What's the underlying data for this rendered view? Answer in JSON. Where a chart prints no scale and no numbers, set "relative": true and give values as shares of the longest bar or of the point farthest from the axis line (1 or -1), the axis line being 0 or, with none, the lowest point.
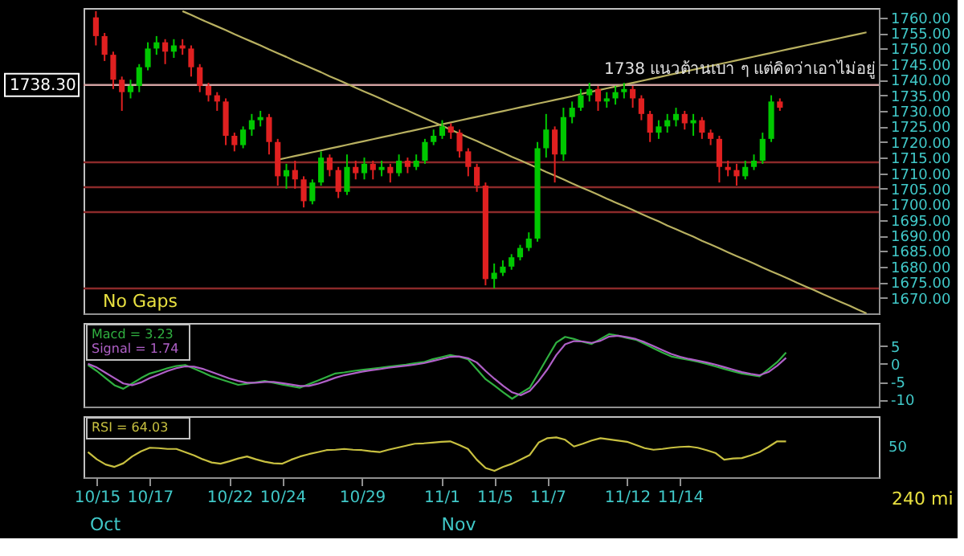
{
  "chart_data": [
    {
      "type": "candlestick",
      "categories": [
        null,
        null,
        null,
        null,
        null,
        null,
        null,
        null,
        null,
        null,
        null,
        null,
        null,
        null,
        null,
        null,
        null,
        null,
        null,
        null,
        null,
        null,
        null,
        null,
        null,
        null,
        null,
        null,
        null,
        null,
        null,
        null,
        null,
        null,
        null,
        null,
        null,
        null,
        null,
        null,
        null,
        null,
        null,
        null,
        null,
        null,
        null,
        null,
        null,
        null,
        null,
        null,
        null,
        null,
        null,
        null,
        null,
        null,
        null,
        null,
        null,
        null,
        null,
        null,
        null,
        null,
        null,
        null,
        null,
        null,
        null,
        null,
        null,
        null,
        null,
        null,
        null,
        null,
        null,
        null,
        null,
        null,
        null,
        null,
        null,
        null,
        null,
        null,
        null,
        null
      ],
      "ohlc": [
        [
          1760,
          1762,
          1751,
          1754
        ],
        [
          1754,
          1755,
          1746,
          1748
        ],
        [
          1748,
          1749,
          1737,
          1740
        ],
        [
          1740,
          1741,
          1730,
          1736
        ],
        [
          1736,
          1740,
          1734,
          1738
        ],
        [
          1738,
          1745,
          1736,
          1744
        ],
        [
          1744,
          1752,
          1743,
          1750
        ],
        [
          1750,
          1754,
          1748,
          1752
        ],
        [
          1752,
          1753,
          1745,
          1749
        ],
        [
          1749,
          1753,
          1747,
          1751
        ],
        [
          1751,
          1753,
          1748,
          1750
        ],
        [
          1750,
          1751,
          1741,
          1744
        ],
        [
          1744,
          1745,
          1736,
          1738
        ],
        [
          1738,
          1739,
          1733,
          1735
        ],
        [
          1735,
          1736,
          1730,
          1733
        ],
        [
          1733,
          1734,
          1719,
          1722
        ],
        [
          1722,
          1723,
          1717,
          1719
        ],
        [
          1719,
          1725,
          1718,
          1724
        ],
        [
          1724,
          1729,
          1722,
          1727
        ],
        [
          1727,
          1730,
          1725,
          1728
        ],
        [
          1728,
          1729,
          1716,
          1720
        ],
        [
          1720,
          1721,
          1706,
          1709
        ],
        [
          1709,
          1713,
          1705,
          1711
        ],
        [
          1711,
          1714,
          1705,
          1708
        ],
        [
          1708,
          1709,
          1699,
          1701
        ],
        [
          1701,
          1708,
          1700,
          1707
        ],
        [
          1707,
          1717,
          1706,
          1715
        ],
        [
          1715,
          1716,
          1709,
          1711
        ],
        [
          1711,
          1712,
          1702,
          1704
        ],
        [
          1704,
          1716,
          1703,
          1712
        ],
        [
          1712,
          1714,
          1708,
          1710
        ],
        [
          1710,
          1715,
          1708,
          1713
        ],
        [
          1713,
          1714,
          1708,
          1711
        ],
        [
          1711,
          1714,
          1709,
          1712
        ],
        [
          1712,
          1713,
          1707,
          1710
        ],
        [
          1710,
          1716,
          1709,
          1714
        ],
        [
          1714,
          1715,
          1710,
          1712
        ],
        [
          1712,
          1716,
          1711,
          1714
        ],
        [
          1714,
          1721,
          1713,
          1720
        ],
        [
          1720,
          1724,
          1719,
          1722
        ],
        [
          1722,
          1727,
          1721,
          1725
        ],
        [
          1725,
          1726,
          1721,
          1723
        ],
        [
          1723,
          1724,
          1715,
          1717
        ],
        [
          1717,
          1718,
          1709,
          1712
        ],
        [
          1712,
          1713,
          1704,
          1706
        ],
        [
          1706,
          1707,
          1674,
          1676
        ],
        [
          1676,
          1681,
          1673,
          1678
        ],
        [
          1678,
          1682,
          1677,
          1680
        ],
        [
          1680,
          1684,
          1679,
          1683
        ],
        [
          1683,
          1687,
          1682,
          1686
        ],
        [
          1686,
          1691,
          1685,
          1689
        ],
        [
          1689,
          1720,
          1688,
          1718
        ],
        [
          1718,
          1729,
          1715,
          1724
        ],
        [
          1724,
          1725,
          1707,
          1716
        ],
        [
          1716,
          1731,
          1714,
          1728
        ],
        [
          1728,
          1733,
          1726,
          1731
        ],
        [
          1731,
          1737,
          1730,
          1735
        ],
        [
          1735,
          1739,
          1733,
          1737
        ],
        [
          1737,
          1738,
          1730,
          1733
        ],
        [
          1733,
          1736,
          1731,
          1734
        ],
        [
          1734,
          1738,
          1732,
          1736
        ],
        [
          1736,
          1739,
          1734,
          1737
        ],
        [
          1737,
          1738,
          1731,
          1734
        ],
        [
          1734,
          1735,
          1727,
          1729
        ],
        [
          1729,
          1730,
          1720,
          1723
        ],
        [
          1723,
          1727,
          1721,
          1725
        ],
        [
          1725,
          1729,
          1723,
          1727
        ],
        [
          1727,
          1731,
          1725,
          1729
        ],
        [
          1729,
          1730,
          1724,
          1726
        ],
        [
          1726,
          1729,
          1722,
          1727
        ],
        [
          1727,
          1728,
          1721,
          1723
        ],
        [
          1723,
          1724,
          1719,
          1721
        ],
        [
          1721,
          1722,
          1707,
          1712
        ],
        [
          1712,
          1714,
          1709,
          1711
        ],
        [
          1711,
          1713,
          1706,
          1709
        ],
        [
          1709,
          1714,
          1708,
          1712
        ],
        [
          1712,
          1716,
          1711,
          1714
        ],
        [
          1714,
          1723,
          1713,
          1721
        ],
        [
          1721,
          1735,
          1720,
          1733
        ],
        [
          1733,
          1734,
          1730,
          1731
        ],
        null,
        null,
        null,
        null,
        null,
        null,
        null,
        null,
        null,
        null
      ],
      "colors": [
        "#e02020",
        "#e02020",
        "#e02020",
        "#e02020",
        "#00c800",
        "#00c800",
        "#00c800",
        "#00c800",
        "#e02020",
        "#00c800",
        "#e02020",
        "#e02020",
        "#e02020",
        "#e02020",
        "#e02020",
        "#e02020",
        "#e02020",
        "#00c800",
        "#00c800",
        "#00c800",
        "#e02020",
        "#e02020",
        "#00c800",
        "#e02020",
        "#e02020",
        "#00c800",
        "#00c800",
        "#e02020",
        "#e02020",
        "#00c800",
        "#e02020",
        "#00c800",
        "#e02020",
        "#00c800",
        "#e02020",
        "#00c800",
        "#e02020",
        "#00c800",
        "#00c800",
        "#00c800",
        "#00c800",
        "#e02020",
        "#e02020",
        "#e02020",
        "#e02020",
        "#e02020",
        "#00c800",
        "#00c800",
        "#00c800",
        "#00c800",
        "#00c800",
        "#00c800",
        "#00c800",
        "#e02020",
        "#00c800",
        "#00c800",
        "#00c800",
        "#00c800",
        "#e02020",
        "#00c800",
        "#00c800",
        "#00c800",
        "#e02020",
        "#e02020",
        "#e02020",
        "#00c800",
        "#00c800",
        "#00c800",
        "#e02020",
        "#00c800",
        "#e02020",
        "#e02020",
        "#e02020",
        "#e02020",
        "#e02020",
        "#00c800",
        "#00c800",
        "#00c800",
        "#00c800",
        "#e02020",
        null,
        null,
        null,
        null,
        null,
        null,
        null,
        null,
        null,
        null
      ],
      "ylim": [
        1665,
        1763
      ],
      "yticks": [
        {
          "value": 1670,
          "label": "1670.00"
        },
        {
          "value": 1675,
          "label": "1675.00"
        },
        {
          "value": 1680,
          "label": "1680.00"
        },
        {
          "value": 1685,
          "label": "1685.00"
        },
        {
          "value": 1690,
          "label": "1690.00"
        },
        {
          "value": 1695,
          "label": "1695.00"
        },
        {
          "value": 1700,
          "label": "1700.00"
        },
        {
          "value": 1705,
          "label": "1705.00"
        },
        {
          "value": 1710,
          "label": "1710.00"
        },
        {
          "value": 1715,
          "label": "1715.00"
        },
        {
          "value": 1720,
          "label": "1720.00"
        },
        {
          "value": 1725,
          "label": "1725.00"
        },
        {
          "value": 1730,
          "label": "1730.00"
        },
        {
          "value": 1735,
          "label": "1735.00"
        },
        {
          "value": 1740,
          "label": "1740.00"
        },
        {
          "value": 1745,
          "label": "1745.00"
        },
        {
          "value": 1750,
          "label": "1750.00"
        },
        {
          "value": 1755,
          "label": "1755.00"
        },
        {
          "value": 1760,
          "label": "1760.00"
        }
      ],
      "tick_labels": "y",
      "ref_lines": [
        {
          "axis": "y",
          "value": 1738.3,
          "label": "1738.30",
          "color": "#d0a0a0"
        },
        {
          "axis": "y",
          "value": 1713.5,
          "color": "#8b2a2a"
        },
        {
          "axis": "y",
          "value": 1705.5,
          "color": "#8b2a2a"
        },
        {
          "axis": "y",
          "value": 1697.5,
          "color": "#8b2a2a"
        },
        {
          "axis": "y",
          "value": 1673,
          "color": "#8b2a2a"
        }
      ],
      "series": [
        {
          "type": "line",
          "color": "#b8b060",
          "values": [
            null,
            null,
            null,
            null,
            null,
            null,
            null,
            null,
            null,
            null,
            1762.0,
            1760.8,
            1759.5,
            1758.3,
            1757.1,
            1755.9,
            1754.6,
            1753.4,
            1752.2,
            1751.0,
            1749.7,
            1748.5,
            1747.3,
            1746.0,
            1744.8,
            1743.6,
            1742.4,
            1741.1,
            1739.9,
            1738.7,
            1737.4,
            1736.2,
            1735.0,
            1733.8,
            1732.5,
            1731.3,
            1730.1,
            1728.8,
            1727.6,
            1726.4,
            1725.2,
            1723.9,
            1722.7,
            1721.5,
            1720.3,
            1719.0,
            1717.8,
            1716.6,
            1715.3,
            1714.1,
            1712.9,
            1711.7,
            1710.4,
            1709.2,
            1708.0,
            1706.7,
            1705.5,
            1704.3,
            1703.1,
            1701.8,
            1700.6,
            1699.4,
            1698.2,
            1696.9,
            1695.7,
            1694.5,
            1693.2,
            1692.0,
            1690.8,
            1689.6,
            1688.3,
            1687.1,
            1685.9,
            1684.6,
            1683.4,
            1682.2,
            1681.0,
            1679.7,
            1678.5,
            1677.3,
            1676.1,
            1674.8,
            1673.6,
            1672.4,
            1671.1,
            1669.9,
            1668.7,
            1667.5,
            1666.2,
            1665.0
          ]
        },
        {
          "type": "line",
          "color": "#b8b060",
          "values": [
            null,
            null,
            null,
            null,
            null,
            null,
            null,
            null,
            null,
            null,
            null,
            null,
            null,
            null,
            null,
            null,
            null,
            null,
            null,
            null,
            null,
            1714.3,
            1714.9,
            1715.5,
            1716.1,
            1716.7,
            1717.3,
            1717.9,
            1718.5,
            1719.1,
            1719.7,
            1720.3,
            1720.9,
            1721.5,
            1722.1,
            1722.7,
            1723.3,
            1723.9,
            1724.5,
            1725.1,
            1725.7,
            1726.3,
            1726.9,
            1727.5,
            1728.1,
            1728.7,
            1729.3,
            1729.9,
            1730.5,
            1731.1,
            1731.7,
            1732.3,
            1732.9,
            1733.5,
            1734.1,
            1734.7,
            1735.4,
            1736.0,
            1736.6,
            1737.2,
            1737.8,
            1738.4,
            1739.0,
            1739.6,
            1740.2,
            1740.8,
            1741.4,
            1742.0,
            1742.6,
            1743.2,
            1743.8,
            1744.4,
            1745.0,
            1745.6,
            1746.2,
            1746.8,
            1747.4,
            1748.0,
            1748.6,
            1749.2,
            1749.8,
            1750.4,
            1751.0,
            1751.6,
            1752.2,
            1752.8,
            1753.4,
            1754.0,
            1754.6,
            1755.2
          ]
        }
      ],
      "annotations": [
        "No Gaps",
        {
          "text": "1738 แนวต้านเบา ๆ แต่คิดว่าเอาไม่อยู่",
          "y": 1738.3
        }
      ]
    },
    {
      "type": "line",
      "categories": [
        null,
        null,
        null,
        null,
        null,
        null,
        null,
        null,
        null,
        null,
        null,
        null,
        null,
        null,
        null,
        null,
        null,
        null,
        null,
        null,
        null,
        null,
        null,
        null,
        null,
        null,
        null,
        null,
        null,
        null,
        null,
        null,
        null,
        null,
        null,
        null,
        null,
        null,
        null,
        null,
        null,
        null,
        null,
        null,
        null,
        null,
        null,
        null,
        null,
        null,
        null,
        null,
        null,
        null,
        null,
        null,
        null,
        null,
        null,
        null,
        null,
        null,
        null,
        null,
        null,
        null,
        null,
        null,
        null,
        null,
        null,
        null,
        null,
        null,
        null,
        null,
        null,
        null,
        null,
        null,
        null,
        null,
        null,
        null,
        null,
        null,
        null,
        null,
        null,
        null
      ],
      "series": [
        {
          "name": "Macd = 3.23",
          "color": "#30b040",
          "values": [
            -0.3,
            -2,
            -4,
            -6,
            -7,
            -5.5,
            -4,
            -2.7,
            -2,
            -1.2,
            -0.6,
            -0.3,
            -1.3,
            -2.4,
            -3.5,
            -4.3,
            -5.1,
            -5.9,
            -5.6,
            -5.2,
            -4.8,
            -5.3,
            -5.8,
            -6.3,
            -6.7,
            -5.7,
            -4.7,
            -3.7,
            -2.7,
            -2.4,
            -2,
            -1.7,
            -1.4,
            -1.1,
            -0.8,
            -0.5,
            -0.2,
            0.2,
            0.5,
            1.3,
            1.9,
            2.5,
            2,
            1.3,
            -1.5,
            -4.3,
            -6.1,
            -8,
            -9.8,
            -8.2,
            -6.7,
            -2.5,
            1.8,
            6,
            7.6,
            7,
            6.2,
            5.6,
            7,
            8.4,
            7.9,
            7.3,
            6.8,
            5.6,
            4.4,
            3.2,
            2.1,
            1.6,
            1.1,
            0.6,
            0,
            -0.7,
            -1.4,
            -2.1,
            -2.7,
            -3.1,
            -3.5,
            -1.5,
            0.5,
            3.2,
            null,
            null,
            null,
            null,
            null,
            null,
            null,
            null,
            null,
            null
          ]
        },
        {
          "name": "Signal = 1.74",
          "color": "#b060c8",
          "values": [
            0,
            -1,
            -2.5,
            -4,
            -5.5,
            -6,
            -5.2,
            -4,
            -3,
            -2,
            -1.2,
            -0.7,
            -0.8,
            -1.4,
            -2.3,
            -3.2,
            -4.1,
            -4.8,
            -5.3,
            -5.3,
            -5.1,
            -5.1,
            -5.4,
            -5.8,
            -6.2,
            -6.2,
            -5.6,
            -4.8,
            -3.9,
            -3.2,
            -2.7,
            -2.2,
            -1.8,
            -1.5,
            -1.1,
            -0.8,
            -0.5,
            -0.2,
            0.2,
            0.8,
            1.4,
            2,
            2.1,
            1.6,
            0.4,
            -2,
            -4.2,
            -6.2,
            -8,
            -8.8,
            -7.6,
            -4.8,
            -1.5,
            2.5,
            5.5,
            6.4,
            6.3,
            5.9,
            6.5,
            7.7,
            7.9,
            7.5,
            7,
            6.1,
            5,
            3.9,
            2.8,
            2,
            1.4,
            0.9,
            0.4,
            -0.2,
            -0.9,
            -1.6,
            -2.3,
            -2.8,
            -3.2,
            -2.3,
            -0.5,
            1.7,
            null,
            null,
            null,
            null,
            null,
            null,
            null,
            null,
            null,
            null
          ]
        }
      ],
      "ylim": [
        -12,
        11.5
      ],
      "yticks": [
        5,
        0,
        -5,
        -10
      ],
      "tick_labels": "y",
      "legend": "top left"
    },
    {
      "type": "line",
      "categories": [
        null,
        "10/15",
        null,
        null,
        null,
        null,
        null,
        "10/17",
        null,
        null,
        null,
        null,
        null,
        null,
        null,
        null,
        "10/22",
        null,
        null,
        null,
        null,
        null,
        "10/24",
        null,
        null,
        null,
        null,
        null,
        null,
        null,
        null,
        "10/29",
        null,
        null,
        null,
        null,
        null,
        null,
        null,
        null,
        "11/1",
        null,
        null,
        null,
        null,
        null,
        "11/5",
        null,
        null,
        null,
        null,
        null,
        "11/7",
        null,
        null,
        null,
        null,
        null,
        null,
        null,
        null,
        "11/12",
        null,
        null,
        null,
        null,
        null,
        "11/14",
        null,
        null,
        null,
        null,
        null,
        null,
        null,
        null,
        null,
        null,
        null,
        null,
        null,
        null,
        null,
        null,
        null,
        null,
        null,
        null,
        null,
        null
      ],
      "series": [
        {
          "name": "RSI = 64.03",
          "color": "#c8c040",
          "values": [
            0.63,
            0.45,
            0.32,
            0.26,
            0.35,
            0.52,
            0.65,
            0.74,
            0.73,
            0.71,
            0.71,
            0.63,
            0.55,
            0.45,
            0.37,
            0.34,
            0.4,
            0.47,
            0.52,
            0.45,
            0.39,
            0.35,
            0.34,
            0.44,
            0.52,
            0.58,
            0.63,
            0.68,
            0.69,
            0.71,
            0.69,
            0.68,
            0.65,
            0.63,
            0.69,
            0.74,
            0.79,
            0.84,
            0.85,
            0.87,
            0.89,
            0.9,
            0.81,
            0.71,
            0.44,
            0.23,
            0.16,
            0.26,
            0.34,
            0.45,
            0.56,
            0.87,
            0.98,
            1,
            0.94,
            0.77,
            0.84,
            0.92,
            0.98,
            0.95,
            0.92,
            0.89,
            0.81,
            0.73,
            0.69,
            0.71,
            0.74,
            0.76,
            0.77,
            0.74,
            0.68,
            0.61,
            0.44,
            0.47,
            0.48,
            0.55,
            0.63,
            0.76,
            0.9,
            0.9,
            null,
            null,
            null,
            null,
            null,
            null,
            null,
            null,
            null,
            null
          ]
        }
      ],
      "relative": true,
      "legend": "top left",
      "annotations": [
        "Oct",
        "Nov",
        "240 mi",
        "50"
      ]
    }
  ]
}
